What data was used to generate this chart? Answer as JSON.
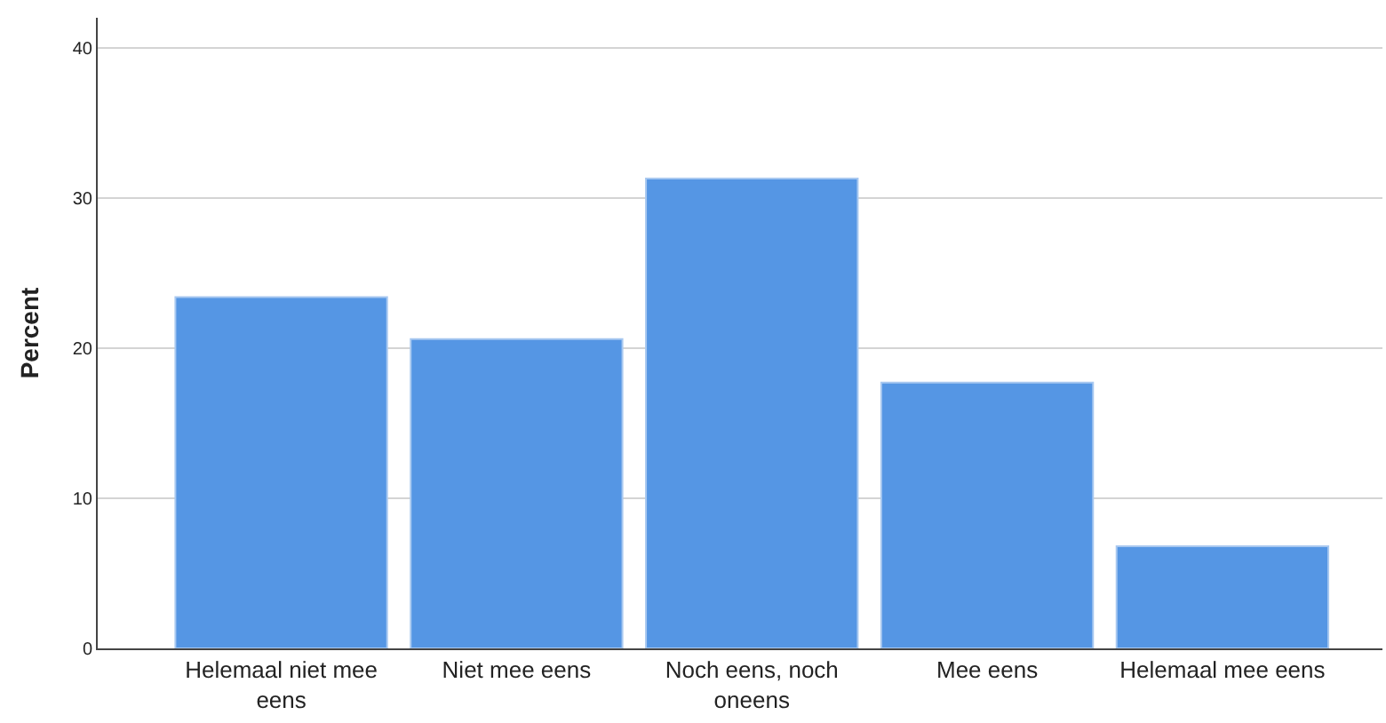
{
  "chart_data": {
    "type": "bar",
    "ylabel": "Percent",
    "categories": [
      "Helemaal niet mee eens",
      "Niet mee eens",
      "Noch eens, noch oneens",
      "Mee eens",
      "Helemaal mee eens"
    ],
    "values": [
      23.4,
      20.6,
      31.3,
      17.7,
      6.8
    ],
    "color": "#5596e4",
    "ylim": [
      0,
      42
    ],
    "yticks": [
      0,
      10,
      20,
      30,
      40
    ],
    "grid": "y"
  }
}
